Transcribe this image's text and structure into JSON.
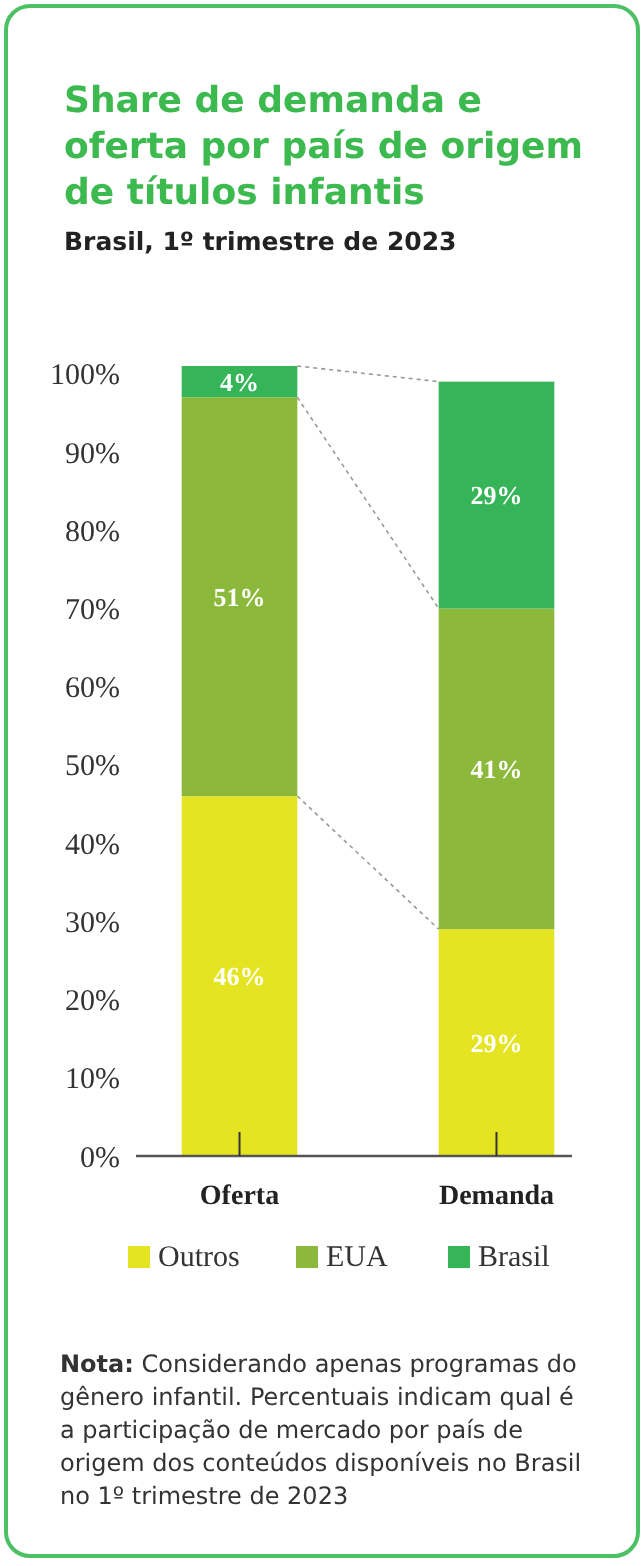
{
  "chart_data": {
    "type": "bar",
    "title": "Share de demanda e oferta por país de origem de títulos infantis",
    "subtitle": "Brasil, 1º trimestre de 2023",
    "categories": [
      "Oferta",
      "Demanda"
    ],
    "stacked": true,
    "series": [
      {
        "name": "Outros",
        "color": "#e5e422",
        "values": [
          46,
          29
        ],
        "value_labels": [
          "46%",
          "29%"
        ]
      },
      {
        "name": "EUA",
        "color": "#8cb93c",
        "values": [
          51,
          41
        ],
        "value_labels": [
          "51%",
          "41%"
        ]
      },
      {
        "name": "Brasil",
        "color": "#35b458",
        "values": [
          4,
          29
        ],
        "value_labels": [
          "4%",
          "29%"
        ]
      }
    ],
    "ylim": [
      0,
      101
    ],
    "yticks": [
      {
        "value": 0,
        "label": "0%"
      },
      {
        "value": 10,
        "label": "10%"
      },
      {
        "value": 20,
        "label": "20%"
      },
      {
        "value": 30,
        "label": "30%"
      },
      {
        "value": 40,
        "label": "40%"
      },
      {
        "value": 50,
        "label": "50%"
      },
      {
        "value": 60,
        "label": "60%"
      },
      {
        "value": 70,
        "label": "70%"
      },
      {
        "value": 80,
        "label": "80%"
      },
      {
        "value": 90,
        "label": "90%"
      },
      {
        "value": 100,
        "label": "100%"
      }
    ],
    "grid": false,
    "legend": "bottom",
    "annotations": [
      "Nota: Considerando apenas programas do gênero infantil. Percentuais indicam qual é a participação de mercado por país de origem dos conteúdos disponíveis no Brasil no 1º trimestre de 2023"
    ]
  }
}
